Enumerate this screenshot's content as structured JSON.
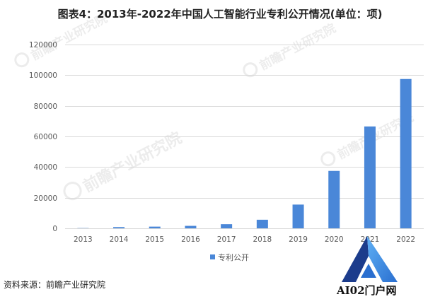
{
  "source": "资料来源：前瞻产业研究院",
  "watermark": "前瞻产业研究院",
  "logo": {
    "text": "AI02门户网",
    "icon": "ai02-logo-icon"
  },
  "colors": {
    "bar": "#4a87d8",
    "grid": "#d9d9d9",
    "tick_text": "#595959",
    "title_text": "#222222",
    "logo_dark": "#1c3c8c",
    "logo_light": "#3a93ea"
  },
  "chart_data": {
    "type": "bar",
    "title": "图表4：2013年-2022年中国人工智能行业专利公开情况(单位：项)",
    "categories": [
      "2013",
      "2014",
      "2015",
      "2016",
      "2017",
      "2018",
      "2019",
      "2020",
      "2021",
      "2022"
    ],
    "series": [
      {
        "name": "专利公开",
        "values": [
          150,
          800,
          1100,
          1600,
          2700,
          5600,
          15500,
          37500,
          66500,
          97500
        ]
      }
    ],
    "ylim": [
      0,
      120000
    ],
    "yticks": [
      0,
      20000,
      40000,
      60000,
      80000,
      100000,
      120000
    ],
    "grid": true,
    "legend": "bottom"
  }
}
